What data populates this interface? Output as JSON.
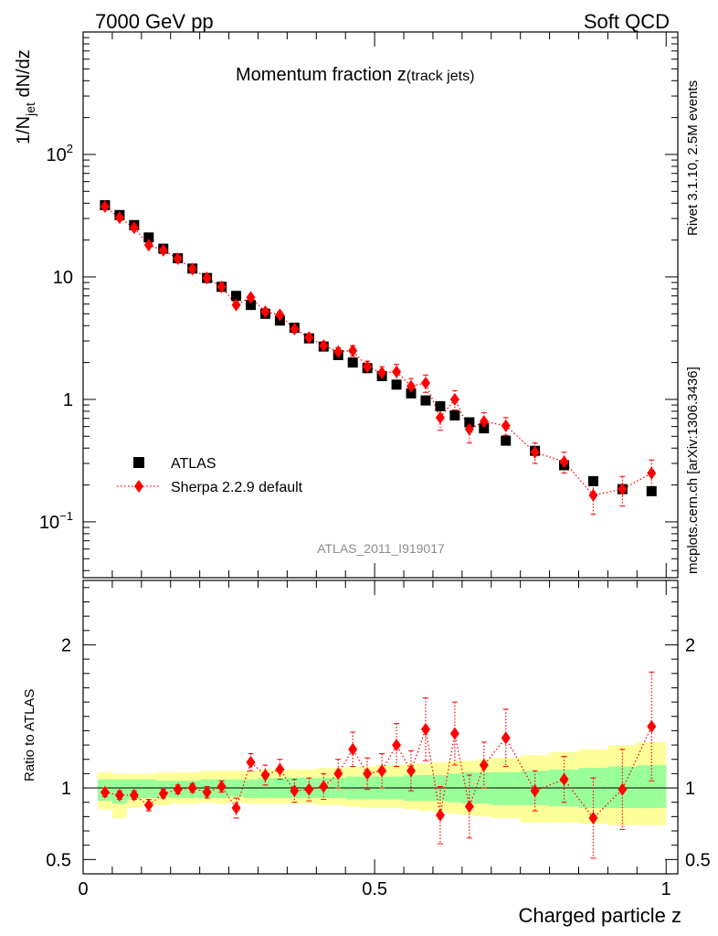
{
  "header": {
    "left": "7000 GeV pp",
    "right": "Soft QCD"
  },
  "side_labels": {
    "upper": "Rivet 3.1.10,  2.5M events",
    "lower": "mcplots.cern.ch [arXiv:1306.3436]"
  },
  "chart_data": [
    {
      "type": "scatter",
      "panel": "main",
      "title_main": "Momentum fraction z",
      "title_sub": "(track jets)",
      "analysis_id": "ATLAS_2011_I919017",
      "ylabel": {
        "main": "1/N",
        "sub": "jet",
        "rest": " dN/dz"
      },
      "yscale": "log",
      "ylim": [
        0.035,
        1000
      ],
      "xlim": [
        0,
        1.02
      ],
      "ytick_labels": [
        {
          "value": 100,
          "base": "10",
          "exp": "2"
        },
        {
          "value": 10,
          "base": "10",
          "exp": ""
        },
        {
          "value": 1,
          "base": "1",
          "exp": ""
        },
        {
          "value": 0.1,
          "base": "10",
          "exp": "−1"
        }
      ],
      "legend_position": "lower-left",
      "series": [
        {
          "name": "ATLAS",
          "marker": "square",
          "color": "#000000",
          "x": [
            0.0375,
            0.0625,
            0.0875,
            0.1125,
            0.1375,
            0.1625,
            0.1875,
            0.2125,
            0.2375,
            0.2625,
            0.2875,
            0.3125,
            0.3375,
            0.3625,
            0.3875,
            0.4125,
            0.4375,
            0.4625,
            0.4875,
            0.5125,
            0.5375,
            0.5625,
            0.5875,
            0.6125,
            0.6375,
            0.6625,
            0.6875,
            0.725,
            0.775,
            0.825,
            0.875,
            0.925,
            0.975
          ],
          "y": [
            38.5,
            32.0,
            26.5,
            21.0,
            17.0,
            14.2,
            11.7,
            9.8,
            8.3,
            7.0,
            5.9,
            5.0,
            4.4,
            3.85,
            3.15,
            2.7,
            2.3,
            2.0,
            1.8,
            1.55,
            1.32,
            1.12,
            0.98,
            0.88,
            0.74,
            0.65,
            0.58,
            0.46,
            0.38,
            0.29,
            0.215,
            0.185,
            0.178
          ]
        },
        {
          "name": "Sherpa 2.2.9 default",
          "marker": "diamond",
          "color": "#ff0000",
          "line": "dotted",
          "x": [
            0.0375,
            0.0625,
            0.0875,
            0.1125,
            0.1375,
            0.1625,
            0.1875,
            0.2125,
            0.2375,
            0.2625,
            0.2875,
            0.3125,
            0.3375,
            0.3625,
            0.3875,
            0.4125,
            0.4375,
            0.4625,
            0.4875,
            0.5125,
            0.5375,
            0.5625,
            0.5875,
            0.6125,
            0.6375,
            0.6625,
            0.6875,
            0.725,
            0.775,
            0.825,
            0.875,
            0.925,
            0.975
          ],
          "y": [
            37.5,
            30.5,
            25.2,
            18.2,
            16.5,
            14.1,
            11.6,
            9.8,
            8.3,
            5.9,
            6.8,
            5.2,
            4.9,
            3.75,
            3.2,
            2.75,
            2.45,
            2.5,
            1.85,
            1.65,
            1.68,
            1.28,
            1.36,
            0.71,
            1.0,
            0.57,
            0.66,
            0.61,
            0.37,
            0.31,
            0.165,
            0.185,
            0.25
          ],
          "yerr": [
            0.8,
            0.6,
            0.5,
            0.4,
            0.4,
            0.35,
            0.3,
            0.3,
            0.25,
            0.3,
            0.3,
            0.3,
            0.3,
            0.25,
            0.2,
            0.2,
            0.2,
            0.25,
            0.2,
            0.2,
            0.25,
            0.2,
            0.22,
            0.15,
            0.18,
            0.13,
            0.12,
            0.1,
            0.07,
            0.06,
            0.05,
            0.05,
            0.07
          ]
        }
      ]
    },
    {
      "type": "scatter",
      "panel": "ratio",
      "ylabel": "Ratio to ATLAS",
      "xlabel": "Charged particle z",
      "ylim": [
        0.4,
        2.45
      ],
      "xlim": [
        0,
        1.02
      ],
      "ytick_labels": [
        {
          "value": 0.5,
          "label": "0.5"
        },
        {
          "value": 1,
          "label": "1"
        },
        {
          "value": 2,
          "label": "2"
        }
      ],
      "xtick_labels": [
        {
          "value": 0,
          "label": "0"
        },
        {
          "value": 0.5,
          "label": "0.5"
        },
        {
          "value": 1,
          "label": "1"
        }
      ],
      "reference_line": 1,
      "bands": {
        "bin_edges": [
          0.025,
          0.05,
          0.075,
          0.1,
          0.125,
          0.15,
          0.175,
          0.2,
          0.225,
          0.25,
          0.275,
          0.3,
          0.325,
          0.35,
          0.375,
          0.4,
          0.425,
          0.45,
          0.475,
          0.5,
          0.525,
          0.55,
          0.575,
          0.6,
          0.625,
          0.65,
          0.675,
          0.7,
          0.75,
          0.8,
          0.85,
          0.9,
          0.95,
          1.0
        ],
        "inner_color": "#99ff99",
        "outer_color": "#ffff99",
        "inner_low": [
          0.91,
          0.89,
          0.92,
          0.93,
          0.93,
          0.93,
          0.93,
          0.93,
          0.93,
          0.94,
          0.93,
          0.93,
          0.93,
          0.93,
          0.93,
          0.93,
          0.93,
          0.92,
          0.92,
          0.92,
          0.92,
          0.91,
          0.91,
          0.91,
          0.9,
          0.89,
          0.89,
          0.88,
          0.88,
          0.87,
          0.86,
          0.86,
          0.86
        ],
        "inner_high": [
          1.06,
          1.06,
          1.06,
          1.06,
          1.05,
          1.05,
          1.05,
          1.06,
          1.06,
          1.06,
          1.06,
          1.07,
          1.07,
          1.07,
          1.07,
          1.07,
          1.07,
          1.08,
          1.08,
          1.08,
          1.08,
          1.09,
          1.09,
          1.09,
          1.1,
          1.11,
          1.11,
          1.11,
          1.12,
          1.13,
          1.14,
          1.15,
          1.16
        ],
        "outer_low": [
          0.85,
          0.79,
          0.86,
          0.88,
          0.88,
          0.89,
          0.89,
          0.9,
          0.89,
          0.9,
          0.89,
          0.89,
          0.89,
          0.89,
          0.89,
          0.88,
          0.88,
          0.87,
          0.86,
          0.86,
          0.86,
          0.85,
          0.84,
          0.83,
          0.82,
          0.81,
          0.8,
          0.79,
          0.76,
          0.76,
          0.75,
          0.74,
          0.74
        ],
        "outer_high": [
          1.11,
          1.1,
          1.1,
          1.1,
          1.11,
          1.11,
          1.11,
          1.12,
          1.12,
          1.12,
          1.12,
          1.13,
          1.13,
          1.13,
          1.13,
          1.14,
          1.14,
          1.15,
          1.15,
          1.16,
          1.16,
          1.17,
          1.17,
          1.18,
          1.19,
          1.19,
          1.2,
          1.21,
          1.23,
          1.25,
          1.27,
          1.3,
          1.32
        ]
      },
      "series": [
        {
          "name": "Sherpa 2.2.9 default / ATLAS",
          "marker": "diamond",
          "color": "#ff0000",
          "line": "dotted",
          "x": [
            0.0375,
            0.0625,
            0.0875,
            0.1125,
            0.1375,
            0.1625,
            0.1875,
            0.2125,
            0.2375,
            0.2625,
            0.2875,
            0.3125,
            0.3375,
            0.3625,
            0.3875,
            0.4125,
            0.4375,
            0.4625,
            0.4875,
            0.5125,
            0.5375,
            0.5625,
            0.5875,
            0.6125,
            0.6375,
            0.6625,
            0.6875,
            0.725,
            0.775,
            0.825,
            0.875,
            0.925,
            0.975
          ],
          "y": [
            0.97,
            0.95,
            0.95,
            0.88,
            0.96,
            0.99,
            1.0,
            0.97,
            1.01,
            0.86,
            1.18,
            1.09,
            1.13,
            0.98,
            0.99,
            1.01,
            1.1,
            1.27,
            1.1,
            1.12,
            1.3,
            1.12,
            1.41,
            0.81,
            1.38,
            0.87,
            1.16,
            1.35,
            0.98,
            1.06,
            0.79,
            0.99,
            1.43
          ],
          "yerr": [
            0.03,
            0.03,
            0.03,
            0.04,
            0.03,
            0.03,
            0.03,
            0.04,
            0.04,
            0.07,
            0.06,
            0.07,
            0.07,
            0.08,
            0.08,
            0.09,
            0.1,
            0.12,
            0.11,
            0.12,
            0.15,
            0.14,
            0.22,
            0.2,
            0.22,
            0.22,
            0.16,
            0.2,
            0.14,
            0.16,
            0.28,
            0.28,
            0.38
          ]
        }
      ]
    }
  ]
}
